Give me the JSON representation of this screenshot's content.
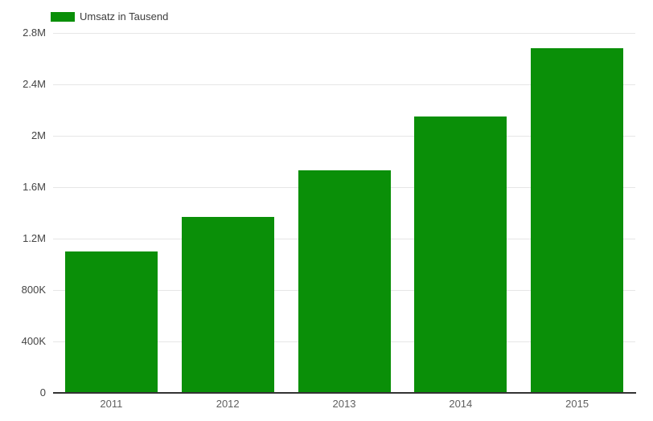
{
  "chart_data": {
    "type": "bar",
    "title": "",
    "xlabel": "",
    "ylabel": "",
    "categories": [
      "2011",
      "2012",
      "2013",
      "2014",
      "2015"
    ],
    "series": [
      {
        "name": "Umsatz in Tausend",
        "color": "#0a8f08",
        "values": [
          1100000,
          1370000,
          1730000,
          2150000,
          2680000
        ]
      }
    ],
    "ylim": [
      0,
      2800000
    ],
    "y_ticks": [
      {
        "label": "0",
        "value": 0
      },
      {
        "label": "400K",
        "value": 400000
      },
      {
        "label": "800K",
        "value": 800000
      },
      {
        "label": "1.2M",
        "value": 1200000
      },
      {
        "label": "1.6M",
        "value": 1600000
      },
      {
        "label": "2M",
        "value": 2000000
      },
      {
        "label": "2.4M",
        "value": 2400000
      },
      {
        "label": "2.8M",
        "value": 2800000
      }
    ],
    "grid": true,
    "legend_position": "top-left"
  },
  "colors": {
    "bar": "#0a8f08",
    "gridline": "#e6e6e6",
    "axis_line": "#333333",
    "y_tick_text": "#444444",
    "x_tick_text": "#5f5f5f",
    "legend_text": "#3d3d3d",
    "background": "#ffffff"
  }
}
